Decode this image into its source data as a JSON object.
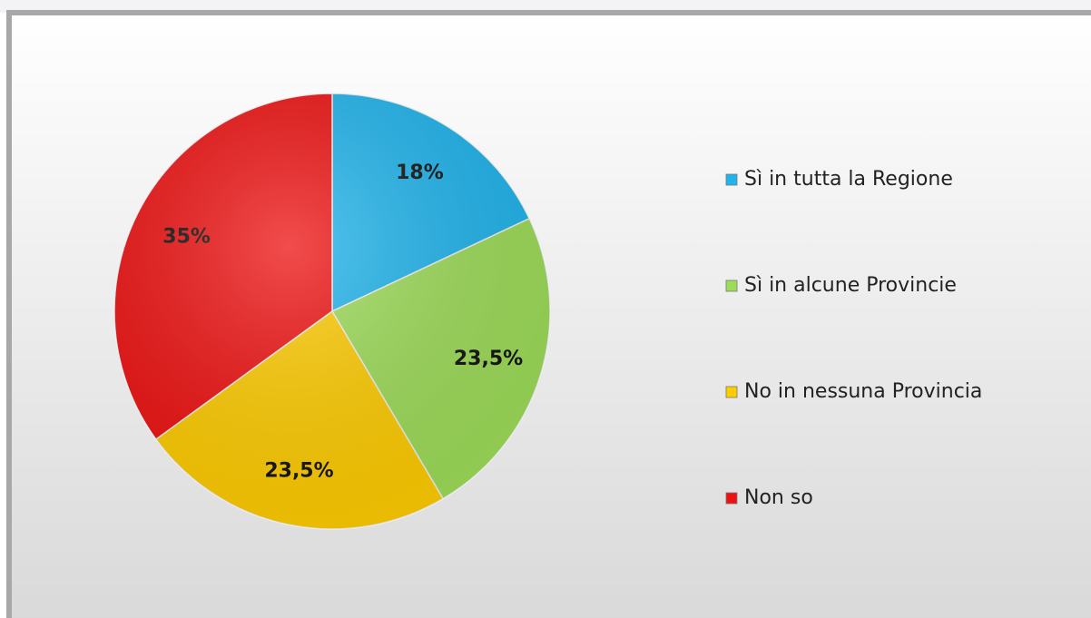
{
  "chart_data": {
    "type": "pie",
    "categories": [
      "Sì in tutta la Regione",
      "Sì in alcune Provincie",
      "No in nessuna Provincia",
      "Non so"
    ],
    "values": [
      18,
      23.5,
      23.5,
      35
    ],
    "value_labels": [
      "18%",
      "23,5%",
      "23,5%",
      "35%"
    ],
    "colors": [
      "#1fb4ec",
      "#9ddc58",
      "#ffcc00",
      "#ee1111"
    ],
    "legend": "right"
  }
}
